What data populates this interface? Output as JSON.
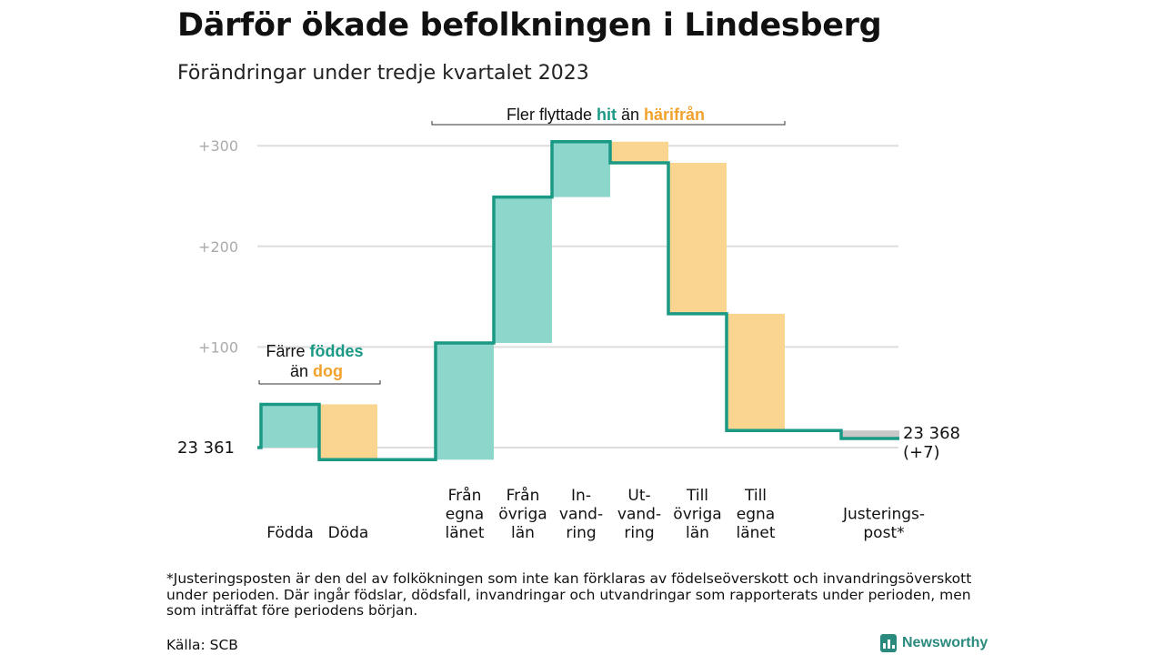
{
  "title": "Därför ökade befolkningen i Lindesberg",
  "subtitle": "Förändringar under tredje kvartalet 2023",
  "colors": {
    "teal": "#1a9985",
    "teal_fill": "#8dd6cc",
    "orange": "#f2a22c",
    "orange_fill": "#fad58f",
    "grey_fill": "#c8c8c8",
    "grid": "#dddddd",
    "tick_text": "#aaaaaa"
  },
  "chart_data": {
    "type": "waterfall",
    "start": {
      "label": "23  361",
      "value": 23361
    },
    "end": {
      "label": "23 368",
      "sublabel": "(+7)",
      "value": 23368
    },
    "y_ticks": [
      {
        "value": 100,
        "label": "+100"
      },
      {
        "value": 200,
        "label": "+200"
      },
      {
        "value": 300,
        "label": "+300"
      }
    ],
    "steps": [
      {
        "lines": [
          "Födda"
        ],
        "delta": 43,
        "kind": "in"
      },
      {
        "lines": [
          "Döda"
        ],
        "delta": -55,
        "kind": "out"
      },
      {
        "lines": [
          "Från",
          "egna",
          "länet"
        ],
        "delta": 116,
        "kind": "in"
      },
      {
        "lines": [
          "Från",
          "övriga",
          "län"
        ],
        "delta": 145,
        "kind": "in"
      },
      {
        "lines": [
          "In-",
          "vand-",
          "ring"
        ],
        "delta": 55,
        "kind": "in"
      },
      {
        "lines": [
          "Ut-",
          "vand-",
          "ring"
        ],
        "delta": -21,
        "kind": "out"
      },
      {
        "lines": [
          "Till",
          "övriga",
          "län"
        ],
        "delta": -150,
        "kind": "out"
      },
      {
        "lines": [
          "Till",
          "egna",
          "länet"
        ],
        "delta": -116,
        "kind": "out"
      },
      {
        "lines": [
          "Justerings-",
          "post*"
        ],
        "delta": -8,
        "kind": "adjust"
      }
    ],
    "annotations": {
      "births": {
        "line1_a": "Färre ",
        "line1_b": "föddes",
        "line2_a": "än ",
        "line2_b": "dog"
      },
      "moves": {
        "a": "Fler flyttade ",
        "b": "hit",
        "c": " än ",
        "d": "härifrån"
      }
    }
  },
  "footnote": "*Justeringsposten är den del av folkökningen som inte kan förklaras av födelseöverskott och invandringsöverskott under perioden. Där ingår födslar, dödsfall, invandringar och utvandringar som rapporterats under perioden, men som inträffat före periodens början.",
  "source": "Källa: SCB",
  "logo": {
    "name": "Newsworthy",
    "icon": "bar-chart-logo-icon"
  }
}
